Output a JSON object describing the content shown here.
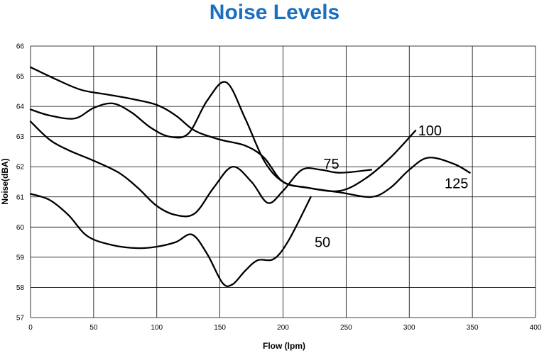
{
  "chart_data": {
    "type": "line",
    "title": "Noise Levels",
    "xlabel": "Flow (lpm)",
    "ylabel": "Noise(dBA)",
    "xlim": [
      0,
      400
    ],
    "ylim": [
      57,
      66
    ],
    "xticks": [
      0,
      50,
      100,
      150,
      200,
      250,
      300,
      350,
      400
    ],
    "yticks": [
      57,
      58,
      59,
      60,
      61,
      62,
      63,
      64,
      65,
      66
    ],
    "grid": true,
    "legend": "inline labels",
    "series": [
      {
        "name": "50",
        "label_at": [
          225,
          59.5
        ],
        "x": [
          0,
          15,
          30,
          45,
          65,
          85,
          100,
          115,
          128,
          140,
          152,
          160,
          170,
          180,
          193,
          205,
          222
        ],
        "y": [
          61.1,
          60.9,
          60.4,
          59.7,
          59.4,
          59.3,
          59.35,
          59.5,
          59.75,
          59.1,
          58.15,
          58.1,
          58.55,
          58.9,
          58.95,
          59.6,
          61.0
        ]
      },
      {
        "name": "75",
        "label_at": [
          232,
          62.1
        ],
        "x": [
          0,
          15,
          30,
          50,
          70,
          85,
          100,
          115,
          130,
          145,
          160,
          175,
          188,
          200,
          215,
          230,
          245,
          270
        ],
        "y": [
          63.5,
          62.9,
          62.55,
          62.2,
          61.8,
          61.3,
          60.7,
          60.4,
          60.45,
          61.3,
          62.0,
          61.5,
          60.8,
          61.2,
          61.9,
          61.9,
          61.8,
          61.9
        ]
      },
      {
        "name": "100",
        "label_at": [
          307,
          63.2
        ],
        "x": [
          0,
          15,
          35,
          50,
          65,
          80,
          95,
          110,
          125,
          140,
          155,
          170,
          185,
          200,
          220,
          245,
          265,
          285,
          305
        ],
        "y": [
          63.9,
          63.7,
          63.6,
          63.95,
          64.1,
          63.8,
          63.3,
          63.0,
          63.1,
          64.2,
          64.8,
          63.6,
          62.2,
          61.5,
          61.3,
          61.2,
          61.6,
          62.3,
          63.2
        ]
      },
      {
        "name": "125",
        "label_at": [
          328,
          61.45
        ],
        "x": [
          0,
          20,
          40,
          60,
          80,
          100,
          115,
          130,
          150,
          170,
          185,
          200,
          220,
          245,
          270,
          285,
          300,
          315,
          335,
          348
        ],
        "y": [
          65.3,
          64.9,
          64.55,
          64.4,
          64.25,
          64.05,
          63.7,
          63.2,
          62.9,
          62.7,
          62.3,
          61.5,
          61.3,
          61.15,
          61.0,
          61.3,
          61.9,
          62.3,
          62.1,
          61.8
        ]
      }
    ]
  }
}
